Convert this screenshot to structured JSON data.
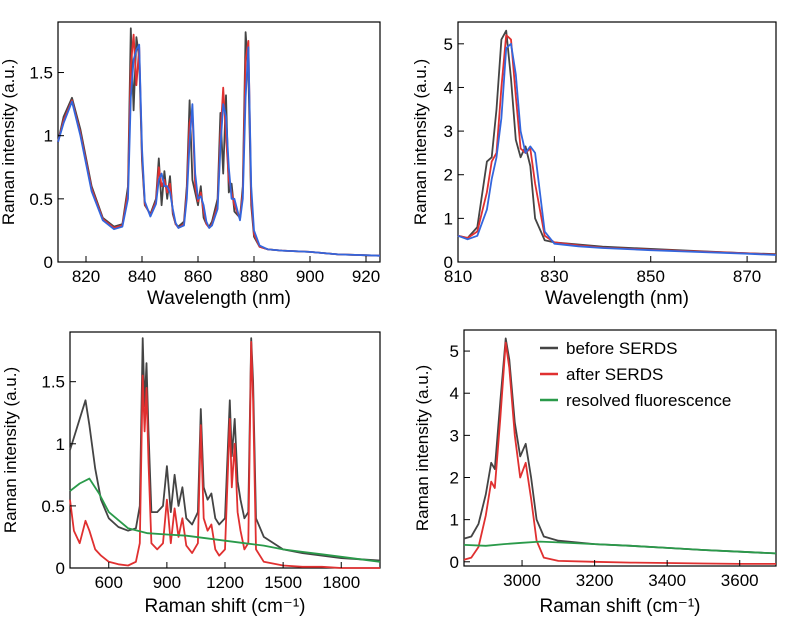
{
  "chart_data": [
    {
      "id": "panel-top-left",
      "type": "line",
      "xlabel": "Wavelength (nm)",
      "ylabel": "Raman intensity (a.u.)",
      "xlim": [
        810,
        925
      ],
      "ylim": [
        0,
        1.9
      ],
      "xticks": [
        820,
        840,
        860,
        880,
        900,
        920
      ],
      "yticks": [
        0,
        0.5,
        1,
        1.5
      ],
      "yticklabels": [
        "0",
        "0.5",
        "1",
        "1.5"
      ],
      "series": [
        {
          "color": "#444444",
          "x": [
            810,
            812,
            815,
            818,
            822,
            826,
            830,
            833,
            835,
            836,
            837,
            838,
            839,
            840,
            841,
            843,
            845,
            846,
            847,
            848,
            849,
            850,
            851,
            852,
            853,
            855,
            856,
            857,
            858,
            859,
            860,
            861,
            862,
            863,
            864,
            865,
            867,
            868,
            869,
            870,
            871,
            872,
            873,
            875,
            876,
            877,
            878,
            879,
            880,
            882,
            885,
            890,
            900,
            910,
            925
          ],
          "y": [
            0.95,
            1.15,
            1.3,
            1.05,
            0.6,
            0.35,
            0.28,
            0.3,
            0.6,
            1.85,
            1.2,
            1.78,
            1.62,
            0.8,
            0.45,
            0.38,
            0.5,
            0.82,
            0.45,
            0.72,
            0.5,
            0.68,
            0.38,
            0.3,
            0.28,
            0.32,
            0.6,
            1.28,
            0.65,
            0.55,
            0.45,
            0.6,
            0.35,
            0.3,
            0.28,
            0.32,
            0.5,
            1.18,
            0.7,
            1.32,
            0.55,
            0.62,
            0.4,
            0.35,
            0.6,
            1.82,
            1.5,
            0.45,
            0.2,
            0.12,
            0.1,
            0.09,
            0.08,
            0.06,
            0.05
          ]
        },
        {
          "color": "#e03030",
          "x": [
            810,
            812,
            815,
            818,
            822,
            826,
            830,
            833,
            835,
            836,
            837,
            838,
            839,
            840,
            841,
            843,
            845,
            846,
            847,
            848,
            849,
            850,
            851,
            852,
            853,
            855,
            856,
            857,
            858,
            859,
            860,
            861,
            862,
            863,
            864,
            865,
            867,
            868,
            869,
            870,
            871,
            872,
            873,
            875,
            876,
            877,
            878,
            879,
            880,
            882,
            885,
            890,
            900,
            910,
            925
          ],
          "y": [
            0.95,
            1.12,
            1.28,
            1.02,
            0.58,
            0.34,
            0.27,
            0.29,
            0.55,
            1.55,
            1.8,
            1.4,
            1.7,
            0.85,
            0.46,
            0.37,
            0.48,
            0.75,
            0.6,
            0.65,
            0.55,
            0.62,
            0.4,
            0.3,
            0.27,
            0.3,
            0.55,
            1.1,
            1.2,
            0.6,
            0.48,
            0.55,
            0.4,
            0.3,
            0.27,
            0.3,
            0.45,
            1.0,
            1.38,
            1.0,
            0.65,
            0.55,
            0.45,
            0.34,
            0.55,
            1.6,
            1.75,
            0.5,
            0.22,
            0.12,
            0.1,
            0.09,
            0.08,
            0.06,
            0.05
          ]
        },
        {
          "color": "#3366dd",
          "x": [
            810,
            812,
            815,
            818,
            822,
            826,
            830,
            833,
            835,
            836,
            837,
            838,
            839,
            840,
            841,
            843,
            845,
            846,
            847,
            848,
            849,
            850,
            851,
            852,
            853,
            855,
            856,
            857,
            858,
            859,
            860,
            861,
            862,
            863,
            864,
            865,
            867,
            868,
            869,
            870,
            871,
            872,
            873,
            875,
            876,
            877,
            878,
            879,
            880,
            882,
            885,
            890,
            900,
            910,
            925
          ],
          "y": [
            0.95,
            1.1,
            1.27,
            1.0,
            0.56,
            0.33,
            0.26,
            0.28,
            0.5,
            1.3,
            1.6,
            1.68,
            1.72,
            0.9,
            0.48,
            0.36,
            0.46,
            0.65,
            0.7,
            0.6,
            0.6,
            0.55,
            0.42,
            0.31,
            0.27,
            0.29,
            0.5,
            0.95,
            1.25,
            0.7,
            0.5,
            0.52,
            0.45,
            0.32,
            0.27,
            0.29,
            0.42,
            0.9,
            1.25,
            1.15,
            0.75,
            0.5,
            0.5,
            0.33,
            0.5,
            1.3,
            1.7,
            0.6,
            0.25,
            0.13,
            0.1,
            0.09,
            0.08,
            0.06,
            0.05
          ]
        }
      ]
    },
    {
      "id": "panel-top-right",
      "type": "line",
      "xlabel": "Wavelength (nm)",
      "ylabel": "Raman intensity (a.u.)",
      "xlim": [
        810,
        876
      ],
      "ylim": [
        0,
        5.5
      ],
      "xticks": [
        810,
        830,
        850,
        870
      ],
      "yticks": [
        0,
        1,
        2,
        3,
        4,
        5
      ],
      "yticklabels": [
        "0",
        "1",
        "2",
        "3",
        "4",
        "5"
      ],
      "series": [
        {
          "color": "#444444",
          "x": [
            810,
            812,
            814,
            816,
            817,
            818,
            819,
            820,
            821,
            822,
            823,
            824,
            825,
            826,
            828,
            830,
            835,
            840,
            850,
            860,
            870,
            876
          ],
          "y": [
            0.6,
            0.55,
            0.8,
            2.3,
            2.4,
            3.5,
            5.1,
            5.3,
            4.2,
            2.8,
            2.4,
            2.65,
            2.2,
            1.0,
            0.5,
            0.45,
            0.4,
            0.35,
            0.3,
            0.25,
            0.2,
            0.18
          ]
        },
        {
          "color": "#e03030",
          "x": [
            810,
            812,
            814,
            816,
            817,
            818,
            819,
            820,
            821,
            822,
            823,
            824,
            825,
            826,
            828,
            830,
            835,
            840,
            850,
            860,
            870,
            876
          ],
          "y": [
            0.6,
            0.55,
            0.7,
            1.6,
            2.3,
            2.5,
            4.0,
            5.2,
            5.1,
            3.8,
            2.6,
            2.5,
            2.6,
            1.8,
            0.6,
            0.45,
            0.38,
            0.33,
            0.28,
            0.24,
            0.2,
            0.17
          ]
        },
        {
          "color": "#3366dd",
          "x": [
            810,
            812,
            814,
            816,
            817,
            818,
            819,
            820,
            821,
            822,
            823,
            824,
            825,
            826,
            828,
            830,
            835,
            840,
            850,
            860,
            870,
            876
          ],
          "y": [
            0.6,
            0.52,
            0.6,
            1.2,
            1.9,
            2.4,
            3.3,
            4.9,
            5.0,
            4.3,
            3.0,
            2.5,
            2.65,
            2.5,
            0.7,
            0.42,
            0.36,
            0.32,
            0.27,
            0.23,
            0.19,
            0.16
          ]
        }
      ]
    },
    {
      "id": "panel-bottom-left",
      "type": "line",
      "xlabel": "Raman shift (cm⁻¹)",
      "ylabel": "Raman intensity (a.u.)",
      "xlim": [
        400,
        2000
      ],
      "ylim": [
        0,
        1.9
      ],
      "xticks": [
        600,
        900,
        1200,
        1500,
        1800
      ],
      "yticks": [
        0,
        0.5,
        1,
        1.5
      ],
      "yticklabels": [
        "0",
        "0.5",
        "1",
        "1.5"
      ],
      "series": [
        {
          "name": "before SERDS",
          "color": "#444444",
          "x": [
            400,
            420,
            450,
            480,
            500,
            530,
            560,
            600,
            650,
            700,
            740,
            760,
            775,
            785,
            795,
            805,
            820,
            850,
            880,
            900,
            920,
            940,
            960,
            980,
            1000,
            1030,
            1060,
            1075,
            1090,
            1110,
            1130,
            1150,
            1170,
            1200,
            1225,
            1235,
            1250,
            1265,
            1280,
            1300,
            1320,
            1335,
            1345,
            1360,
            1400,
            1500,
            1600,
            1700,
            1800,
            1900,
            2000
          ],
          "y": [
            0.95,
            1.05,
            1.2,
            1.35,
            1.15,
            0.8,
            0.55,
            0.4,
            0.33,
            0.3,
            0.32,
            0.5,
            1.85,
            1.3,
            1.65,
            1.1,
            0.45,
            0.45,
            0.5,
            0.82,
            0.45,
            0.75,
            0.5,
            0.65,
            0.4,
            0.35,
            0.45,
            1.28,
            0.65,
            0.55,
            0.6,
            0.4,
            0.35,
            0.4,
            1.35,
            0.9,
            1.2,
            0.7,
            0.55,
            0.4,
            0.45,
            1.85,
            1.5,
            0.4,
            0.25,
            0.15,
            0.12,
            0.1,
            0.08,
            0.07,
            0.06
          ]
        },
        {
          "name": "after SERDS",
          "color": "#e03030",
          "x": [
            400,
            420,
            450,
            480,
            500,
            530,
            560,
            600,
            650,
            700,
            740,
            760,
            775,
            785,
            795,
            805,
            820,
            850,
            880,
            900,
            920,
            940,
            960,
            980,
            1000,
            1030,
            1060,
            1075,
            1090,
            1110,
            1130,
            1150,
            1170,
            1200,
            1225,
            1235,
            1250,
            1265,
            1280,
            1300,
            1320,
            1335,
            1345,
            1360,
            1400,
            1500,
            1600,
            1700,
            1800,
            1900,
            2000
          ],
          "y": [
            0.55,
            0.3,
            0.2,
            0.38,
            0.3,
            0.15,
            0.1,
            0.05,
            0.03,
            0.02,
            0.05,
            0.2,
            1.55,
            1.1,
            1.45,
            0.85,
            0.2,
            0.15,
            0.2,
            0.55,
            0.2,
            0.48,
            0.25,
            0.4,
            0.18,
            0.12,
            0.2,
            1.15,
            0.4,
            0.3,
            0.35,
            0.15,
            0.1,
            0.15,
            1.2,
            0.65,
            1.0,
            0.45,
            0.3,
            0.15,
            0.2,
            1.82,
            1.35,
            0.15,
            0.05,
            0.02,
            0.01,
            0.01,
            0.0,
            0.0,
            0.0
          ]
        },
        {
          "name": "resolved fluorescence",
          "color": "#2a9a4a",
          "x": [
            400,
            450,
            500,
            550,
            600,
            700,
            800,
            900,
            1000,
            1100,
            1200,
            1300,
            1400,
            1500,
            1600,
            1700,
            1800,
            1900,
            2000
          ],
          "y": [
            0.62,
            0.68,
            0.72,
            0.6,
            0.45,
            0.32,
            0.28,
            0.27,
            0.26,
            0.24,
            0.22,
            0.2,
            0.18,
            0.15,
            0.13,
            0.11,
            0.09,
            0.07,
            0.05
          ]
        }
      ]
    },
    {
      "id": "panel-bottom-right",
      "type": "line",
      "xlabel": "Raman shift (cm⁻¹)",
      "ylabel": "Raman intensity (a.u.)",
      "xlim": [
        2840,
        3700
      ],
      "ylim": [
        -0.1,
        5.5
      ],
      "xticks": [
        3000,
        3200,
        3400,
        3600
      ],
      "yticks": [
        0,
        1,
        2,
        3,
        4,
        5
      ],
      "yticklabels": [
        "0",
        "1",
        "2",
        "3",
        "4",
        "5"
      ],
      "legend": {
        "placement": "top-right",
        "entries": [
          {
            "label": "before SERDS",
            "color": "#444444"
          },
          {
            "label": "after SERDS",
            "color": "#e03030"
          },
          {
            "label": "resolved fluorescence",
            "color": "#2a9a4a"
          }
        ]
      },
      "series": [
        {
          "name": "before SERDS",
          "color": "#444444",
          "x": [
            2840,
            2860,
            2880,
            2900,
            2915,
            2925,
            2940,
            2955,
            2965,
            2980,
            2995,
            3010,
            3025,
            3040,
            3060,
            3100,
            3200,
            3300,
            3400,
            3500,
            3600,
            3700
          ],
          "y": [
            0.55,
            0.6,
            0.9,
            1.6,
            2.35,
            2.2,
            3.8,
            5.3,
            4.8,
            3.3,
            2.5,
            2.8,
            2.0,
            1.0,
            0.6,
            0.5,
            0.42,
            0.38,
            0.33,
            0.28,
            0.24,
            0.2
          ]
        },
        {
          "name": "after SERDS",
          "color": "#e03030",
          "x": [
            2840,
            2860,
            2880,
            2900,
            2915,
            2925,
            2940,
            2955,
            2965,
            2980,
            2995,
            3010,
            3025,
            3040,
            3060,
            3100,
            3200,
            3300,
            3400,
            3500,
            3600,
            3700
          ],
          "y": [
            0.05,
            0.1,
            0.35,
            1.1,
            1.9,
            1.75,
            3.4,
            5.2,
            4.6,
            3.0,
            2.0,
            2.35,
            1.5,
            0.5,
            0.1,
            0.02,
            0.0,
            -0.02,
            -0.03,
            -0.04,
            -0.05,
            -0.05
          ]
        },
        {
          "name": "resolved fluorescence",
          "color": "#2a9a4a",
          "x": [
            2840,
            2900,
            2950,
            3000,
            3050,
            3100,
            3200,
            3300,
            3400,
            3500,
            3600,
            3700
          ],
          "y": [
            0.4,
            0.38,
            0.42,
            0.45,
            0.48,
            0.46,
            0.42,
            0.38,
            0.33,
            0.28,
            0.24,
            0.2
          ]
        }
      ]
    }
  ]
}
